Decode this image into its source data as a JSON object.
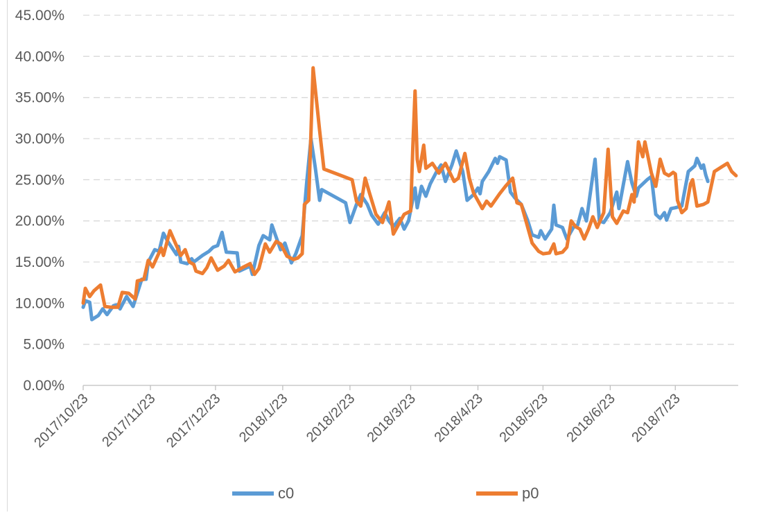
{
  "chart_data": {
    "type": "line",
    "title": "",
    "xlabel": "",
    "ylabel": "",
    "x_ticks": [
      "2017/10/23",
      "2017/11/23",
      "2017/12/23",
      "2018/1/23",
      "2018/2/23",
      "2018/3/23",
      "2018/4/23",
      "2018/5/23",
      "2018/6/23",
      "2018/7/23"
    ],
    "y_ticks": [
      "0.00%",
      "5.00%",
      "10.00%",
      "15.00%",
      "20.00%",
      "25.00%",
      "30.00%",
      "35.00%",
      "40.00%",
      "45.00%"
    ],
    "ylim": [
      0,
      45
    ],
    "x_range": [
      "2017/10/23",
      "2018/8/21"
    ],
    "grid": "horizontal dashed",
    "legend_position": "bottom",
    "series": [
      {
        "name": "c0",
        "color": "#5b9bd5",
        "points": [
          [
            "2017/10/23",
            9.5
          ],
          [
            "2017/10/24",
            10.3
          ],
          [
            "2017/10/26",
            10.1
          ],
          [
            "2017/10/27",
            8.0
          ],
          [
            "2017/10/30",
            8.5
          ],
          [
            "2017/11/1",
            9.3
          ],
          [
            "2017/11/3",
            8.6
          ],
          [
            "2017/11/6",
            9.7
          ],
          [
            "2017/11/8",
            9.8
          ],
          [
            "2017/11/9",
            9.3
          ],
          [
            "2017/11/12",
            10.8
          ],
          [
            "2017/11/15",
            9.6
          ],
          [
            "2017/11/19",
            12.9
          ],
          [
            "2017/11/21",
            12.9
          ],
          [
            "2017/11/22",
            15.0
          ],
          [
            "2017/11/25",
            16.5
          ],
          [
            "2017/11/27",
            16.3
          ],
          [
            "2017/11/29",
            18.5
          ],
          [
            "2017/12/1",
            17.5
          ],
          [
            "2017/12/5",
            15.9
          ],
          [
            "2017/12/6",
            16.9
          ],
          [
            "2017/12/7",
            15.0
          ],
          [
            "2017/12/10",
            14.8
          ],
          [
            "2017/12/12",
            15.4
          ],
          [
            "2017/12/13",
            15.0
          ],
          [
            "2017/12/17",
            15.8
          ],
          [
            "2017/12/20",
            16.3
          ],
          [
            "2017/12/22",
            16.8
          ],
          [
            "2017/12/24",
            17.0
          ],
          [
            "2017/12/26",
            18.6
          ],
          [
            "2017/12/28",
            16.2
          ],
          [
            "2018/1/2",
            16.1
          ],
          [
            "2018/1/3",
            13.9
          ],
          [
            "2018/1/8",
            14.5
          ],
          [
            "2018/1/9",
            13.5
          ],
          [
            "2018/1/12",
            17.0
          ],
          [
            "2018/1/14",
            18.2
          ],
          [
            "2018/1/17",
            17.7
          ],
          [
            "2018/1/18",
            19.5
          ],
          [
            "2018/1/22",
            16.5
          ],
          [
            "2018/1/24",
            17.3
          ],
          [
            "2018/1/27",
            14.9
          ],
          [
            "2018/1/29",
            16.0
          ],
          [
            "2018/2/1",
            18.2
          ],
          [
            "2018/2/3",
            24.5
          ],
          [
            "2018/2/5",
            30.0
          ],
          [
            "2018/2/7",
            26.5
          ],
          [
            "2018/2/9",
            22.5
          ],
          [
            "2018/2/10",
            23.8
          ],
          [
            "2018/2/21",
            22.2
          ],
          [
            "2018/2/23",
            19.8
          ],
          [
            "2018/2/26",
            22.0
          ],
          [
            "2018/2/28",
            23.2
          ],
          [
            "2018/3/3",
            22.0
          ],
          [
            "2018/3/5",
            20.7
          ],
          [
            "2018/3/8",
            19.6
          ],
          [
            "2018/3/11",
            21.0
          ],
          [
            "2018/3/13",
            20.0
          ],
          [
            "2018/3/15",
            19.3
          ],
          [
            "2018/3/18",
            20.3
          ],
          [
            "2018/3/20",
            19.0
          ],
          [
            "2018/3/22",
            20.0
          ],
          [
            "2018/3/25",
            24.0
          ],
          [
            "2018/3/26",
            21.6
          ],
          [
            "2018/3/28",
            24.2
          ],
          [
            "2018/3/30",
            23.0
          ],
          [
            "2018/4/1",
            24.5
          ],
          [
            "2018/4/4",
            26.0
          ],
          [
            "2018/4/6",
            26.8
          ],
          [
            "2018/4/8",
            24.8
          ],
          [
            "2018/4/11",
            26.8
          ],
          [
            "2018/4/13",
            28.5
          ],
          [
            "2018/4/16",
            26.0
          ],
          [
            "2018/4/18",
            22.5
          ],
          [
            "2018/4/21",
            23.2
          ],
          [
            "2018/4/23",
            24.0
          ],
          [
            "2018/4/24",
            23.3
          ],
          [
            "2018/4/25",
            24.8
          ],
          [
            "2018/4/28",
            26.0
          ],
          [
            "2018/5/1",
            27.6
          ],
          [
            "2018/5/2",
            27.0
          ],
          [
            "2018/5/3",
            27.8
          ],
          [
            "2018/5/6",
            27.4
          ],
          [
            "2018/5/8",
            23.5
          ],
          [
            "2018/5/10",
            22.8
          ],
          [
            "2018/5/13",
            22.0
          ],
          [
            "2018/5/16",
            20.0
          ],
          [
            "2018/5/18",
            18.3
          ],
          [
            "2018/5/21",
            18.0
          ],
          [
            "2018/5/22",
            18.8
          ],
          [
            "2018/5/24",
            17.8
          ],
          [
            "2018/5/27",
            19.0
          ],
          [
            "2018/5/28",
            21.9
          ],
          [
            "2018/5/29",
            19.5
          ],
          [
            "2018/6/1",
            19.2
          ],
          [
            "2018/6/3",
            17.8
          ],
          [
            "2018/6/6",
            19.2
          ],
          [
            "2018/6/8",
            19.5
          ],
          [
            "2018/6/10",
            21.5
          ],
          [
            "2018/6/12",
            20.0
          ],
          [
            "2018/6/16",
            27.5
          ],
          [
            "2018/6/18",
            20.0
          ],
          [
            "2018/6/20",
            19.8
          ],
          [
            "2018/6/23",
            21.0
          ],
          [
            "2018/6/26",
            23.5
          ],
          [
            "2018/6/27",
            21.5
          ],
          [
            "2018/7/1",
            27.2
          ],
          [
            "2018/7/3",
            24.6
          ],
          [
            "2018/7/5",
            23.0
          ],
          [
            "2018/7/6",
            24.0
          ],
          [
            "2018/7/8",
            24.5
          ],
          [
            "2018/7/10",
            25.0
          ],
          [
            "2018/7/12",
            25.4
          ],
          [
            "2018/7/14",
            20.8
          ],
          [
            "2018/7/16",
            20.3
          ],
          [
            "2018/7/18",
            21.0
          ],
          [
            "2018/7/19",
            20.1
          ],
          [
            "2018/7/21",
            21.5
          ],
          [
            "2018/7/23",
            21.6
          ],
          [
            "2018/7/26",
            21.8
          ],
          [
            "2018/7/29",
            26.0
          ],
          [
            "2018/8/1",
            26.7
          ],
          [
            "2018/8/2",
            27.6
          ],
          [
            "2018/8/4",
            26.4
          ],
          [
            "2018/8/5",
            26.8
          ],
          [
            "2018/8/6",
            25.6
          ],
          [
            "2018/8/7",
            24.8
          ]
        ]
      },
      {
        "name": "p0",
        "color": "#ed7d31",
        "points": [
          [
            "2017/10/23",
            10.0
          ],
          [
            "2017/10/24",
            11.8
          ],
          [
            "2017/10/26",
            10.8
          ],
          [
            "2017/10/28",
            11.5
          ],
          [
            "2017/10/31",
            12.2
          ],
          [
            "2017/11/2",
            9.6
          ],
          [
            "2017/11/5",
            9.5
          ],
          [
            "2017/11/8",
            9.5
          ],
          [
            "2017/11/10",
            11.3
          ],
          [
            "2017/11/13",
            11.2
          ],
          [
            "2017/11/16",
            10.5
          ],
          [
            "2017/11/17",
            12.7
          ],
          [
            "2017/11/20",
            12.9
          ],
          [
            "2017/11/22",
            15.2
          ],
          [
            "2017/11/24",
            14.4
          ],
          [
            "2017/11/28",
            16.7
          ],
          [
            "2017/11/29",
            15.8
          ],
          [
            "2017/12/2",
            18.8
          ],
          [
            "2017/12/4",
            17.6
          ],
          [
            "2017/12/7",
            15.8
          ],
          [
            "2017/12/9",
            16.5
          ],
          [
            "2017/12/11",
            15.0
          ],
          [
            "2017/12/13",
            14.7
          ],
          [
            "2017/12/14",
            13.9
          ],
          [
            "2017/12/17",
            13.6
          ],
          [
            "2017/12/19",
            14.3
          ],
          [
            "2017/12/21",
            15.5
          ],
          [
            "2017/12/24",
            14.0
          ],
          [
            "2017/12/27",
            14.5
          ],
          [
            "2017/12/29",
            15.2
          ],
          [
            "2018/1/1",
            13.8
          ],
          [
            "2018/1/5",
            14.4
          ],
          [
            "2018/1/8",
            14.8
          ],
          [
            "2018/1/10",
            13.5
          ],
          [
            "2018/1/12",
            14.2
          ],
          [
            "2018/1/15",
            17.2
          ],
          [
            "2018/1/17",
            16.2
          ],
          [
            "2018/1/20",
            17.5
          ],
          [
            "2018/1/22",
            17.2
          ],
          [
            "2018/1/25",
            15.7
          ],
          [
            "2018/1/28",
            15.3
          ],
          [
            "2018/1/30",
            15.5
          ],
          [
            "2018/2/1",
            16.0
          ],
          [
            "2018/2/2",
            22.0
          ],
          [
            "2018/2/4",
            22.5
          ],
          [
            "2018/2/6",
            38.6
          ],
          [
            "2018/2/9",
            31.0
          ],
          [
            "2018/2/11",
            26.3
          ],
          [
            "2018/2/24",
            25.0
          ],
          [
            "2018/2/26",
            22.4
          ],
          [
            "2018/2/28",
            21.8
          ],
          [
            "2018/3/2",
            25.2
          ],
          [
            "2018/3/4",
            23.4
          ],
          [
            "2018/3/7",
            20.8
          ],
          [
            "2018/3/10",
            19.8
          ],
          [
            "2018/3/13",
            22.3
          ],
          [
            "2018/3/15",
            18.4
          ],
          [
            "2018/3/20",
            20.8
          ],
          [
            "2018/3/23",
            21.2
          ],
          [
            "2018/3/24",
            29.0
          ],
          [
            "2018/3/25",
            35.8
          ],
          [
            "2018/3/26",
            27.5
          ],
          [
            "2018/3/27",
            26.0
          ],
          [
            "2018/3/29",
            29.2
          ],
          [
            "2018/3/30",
            26.4
          ],
          [
            "2018/4/2",
            27.0
          ],
          [
            "2018/4/5",
            25.8
          ],
          [
            "2018/4/8",
            27.0
          ],
          [
            "2018/4/12",
            24.8
          ],
          [
            "2018/4/14",
            25.2
          ],
          [
            "2018/4/17",
            28.2
          ],
          [
            "2018/4/19",
            25.2
          ],
          [
            "2018/4/21",
            23.4
          ],
          [
            "2018/4/25",
            21.5
          ],
          [
            "2018/4/27",
            22.4
          ],
          [
            "2018/4/29",
            21.8
          ],
          [
            "2018/5/3",
            23.3
          ],
          [
            "2018/5/6",
            24.3
          ],
          [
            "2018/5/9",
            25.2
          ],
          [
            "2018/5/11",
            22.2
          ],
          [
            "2018/5/13",
            22.0
          ],
          [
            "2018/5/18",
            17.3
          ],
          [
            "2018/5/21",
            16.3
          ],
          [
            "2018/5/23",
            16.0
          ],
          [
            "2018/5/26",
            16.1
          ],
          [
            "2018/5/28",
            17.2
          ],
          [
            "2018/5/29",
            16.0
          ],
          [
            "2018/6/1",
            16.2
          ],
          [
            "2018/6/3",
            16.8
          ],
          [
            "2018/6/5",
            20.0
          ],
          [
            "2018/6/7",
            19.3
          ],
          [
            "2018/6/9",
            19.0
          ],
          [
            "2018/6/11",
            17.8
          ],
          [
            "2018/6/13",
            19.0
          ],
          [
            "2018/6/15",
            20.5
          ],
          [
            "2018/6/17",
            19.2
          ],
          [
            "2018/6/20",
            21.0
          ],
          [
            "2018/6/22",
            28.7
          ],
          [
            "2018/6/24",
            20.5
          ],
          [
            "2018/6/26",
            19.7
          ],
          [
            "2018/6/29",
            21.2
          ],
          [
            "2018/7/1",
            21.0
          ],
          [
            "2018/7/3",
            23.2
          ],
          [
            "2018/7/4",
            22.3
          ],
          [
            "2018/7/6",
            29.6
          ],
          [
            "2018/7/8",
            27.8
          ],
          [
            "2018/7/9",
            29.6
          ],
          [
            "2018/7/12",
            25.8
          ],
          [
            "2018/7/14",
            24.2
          ],
          [
            "2018/7/16",
            27.5
          ],
          [
            "2018/7/18",
            25.8
          ],
          [
            "2018/7/20",
            25.5
          ],
          [
            "2018/7/22",
            25.9
          ],
          [
            "2018/7/23",
            25.7
          ],
          [
            "2018/7/24",
            22.5
          ],
          [
            "2018/7/26",
            21.0
          ],
          [
            "2018/7/28",
            21.5
          ],
          [
            "2018/7/30",
            24.5
          ],
          [
            "2018/7/31",
            25.0
          ],
          [
            "2018/8/2",
            21.8
          ],
          [
            "2018/8/5",
            22.0
          ],
          [
            "2018/8/7",
            22.3
          ],
          [
            "2018/8/10",
            26.0
          ],
          [
            "2018/8/13",
            26.5
          ],
          [
            "2018/8/16",
            27.0
          ],
          [
            "2018/8/18",
            26.0
          ],
          [
            "2018/8/20",
            25.5
          ]
        ]
      }
    ]
  }
}
